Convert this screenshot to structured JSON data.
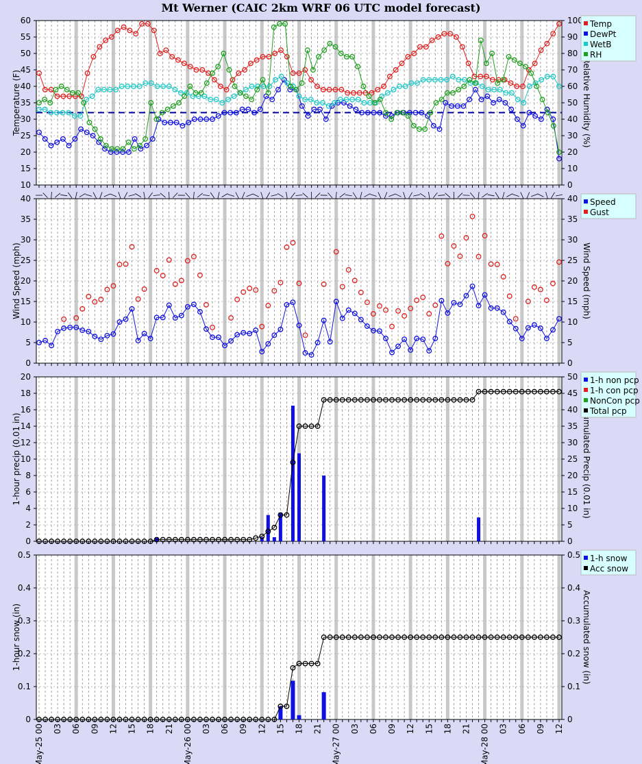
{
  "title": "Mt Werner (CAIC 2km WRF 06 UTC model forecast)",
  "hour_labels": [
    "00",
    "03",
    "06",
    "09",
    "12",
    "15",
    "18",
    "21"
  ],
  "day_labels": [
    {
      "hour": 0,
      "label": "May-25 00"
    },
    {
      "hour": 24,
      "label": "May-26 00"
    },
    {
      "hour": 48,
      "label": "May-27 00"
    },
    {
      "hour": 72,
      "label": "May-28 00"
    }
  ],
  "end_label": {
    "hour": 84,
    "label": "12"
  },
  "chart_data": [
    {
      "type": "line",
      "ylabel": "Temperature (F)",
      "ylabel_right": "Relative Humidity (%)",
      "ylim": [
        10,
        60
      ],
      "ylim_right": [
        0,
        100
      ],
      "freezing_line": 32,
      "legend": [
        "Temp",
        "DewPt",
        "WetB",
        "RH"
      ],
      "colors": {
        "Temp": "#e02020",
        "DewPt": "#1010e0",
        "WetB": "#20c8c8",
        "RH": "#20a020"
      },
      "series": [
        {
          "name": "Temp",
          "values": [
            44,
            39,
            39,
            37,
            37,
            37,
            37,
            37,
            44,
            49,
            52,
            54,
            55,
            57,
            58,
            57,
            56,
            59,
            59,
            57,
            50,
            51,
            49,
            48,
            47,
            46,
            45,
            45,
            44,
            42,
            40,
            39,
            42,
            44,
            45,
            47,
            48,
            49,
            49,
            50,
            51,
            49,
            44,
            44,
            45,
            42,
            40,
            39,
            39,
            39,
            39,
            38,
            38,
            38,
            38,
            38,
            39,
            40,
            43,
            45,
            47,
            49,
            50,
            52,
            52,
            54,
            55,
            56,
            56,
            55,
            52,
            47,
            43,
            43,
            43,
            42,
            42,
            42,
            41,
            40,
            40,
            45,
            47,
            51,
            53,
            56,
            59
          ]
        },
        {
          "name": "DewPt",
          "values": [
            26,
            24,
            22,
            23,
            24,
            22,
            24,
            27,
            26,
            25,
            23,
            21,
            20,
            20,
            20,
            20,
            24,
            21,
            22,
            24,
            30,
            29,
            29,
            29,
            28,
            29,
            30,
            30,
            30,
            30,
            31,
            32,
            32,
            32,
            33,
            33,
            32,
            33,
            37,
            36,
            39,
            42,
            39,
            39,
            34,
            31,
            33,
            33,
            30,
            34,
            35,
            35,
            34,
            33,
            32,
            32,
            32,
            32,
            31,
            31,
            32,
            32,
            32,
            32,
            32,
            31,
            28,
            27,
            35,
            34,
            34,
            34,
            36,
            39,
            36,
            37,
            35,
            36,
            35,
            33,
            30,
            28,
            32,
            31,
            30,
            33,
            30,
            18
          ]
        },
        {
          "name": "WetB",
          "values": [
            33,
            33,
            32,
            32,
            32,
            32,
            31,
            31,
            36,
            37,
            39,
            39,
            39,
            39,
            40,
            40,
            40,
            40,
            41,
            41,
            40,
            40,
            40,
            39,
            38,
            38,
            37,
            37,
            37,
            36,
            36,
            35,
            36,
            37,
            38,
            39,
            40,
            40,
            40,
            40,
            42,
            43,
            41,
            40,
            37,
            36,
            36,
            35,
            35,
            34,
            35,
            36,
            36,
            36,
            36,
            35,
            35,
            35,
            37,
            38,
            39,
            40,
            40,
            41,
            41,
            42,
            42,
            42,
            42,
            42,
            43,
            42,
            42,
            41,
            41,
            40,
            39,
            39,
            39,
            38,
            38,
            36,
            35,
            40,
            41,
            42,
            43,
            43,
            40
          ]
        },
        {
          "name": "RH",
          "values": [
            34,
            36,
            34,
            39,
            40,
            39,
            38,
            38,
            35,
            29,
            27,
            24,
            22,
            21,
            21,
            21,
            23,
            21,
            22,
            24,
            35,
            30,
            32,
            33,
            34,
            35,
            37,
            40,
            38,
            38,
            41,
            44,
            46,
            50,
            45,
            40,
            38,
            37,
            36,
            39,
            42,
            38,
            58,
            59,
            59,
            40,
            39,
            41,
            51,
            45,
            49,
            51,
            53,
            52,
            50,
            49,
            49,
            46,
            40,
            37,
            35,
            36,
            32,
            30,
            32,
            32,
            31,
            28,
            27,
            27,
            32,
            35,
            36,
            38,
            38,
            39,
            40,
            42,
            41,
            54,
            47,
            50,
            41,
            42,
            49,
            48,
            47,
            46,
            44,
            40,
            36,
            32,
            28,
            20
          ]
        }
      ],
      "rh_values": [
        50,
        52,
        50,
        58,
        60,
        58,
        56,
        56,
        50,
        38,
        34,
        28,
        24,
        22,
        22,
        22,
        26,
        22,
        24,
        28,
        50,
        40,
        44,
        46,
        48,
        50,
        54,
        60,
        56,
        56,
        62,
        68,
        72,
        80,
        70,
        60,
        56,
        54,
        52,
        58,
        64,
        56,
        96,
        98,
        98,
        60,
        58,
        62,
        82,
        70,
        78,
        82,
        86,
        84,
        80,
        78,
        78,
        72,
        60,
        54,
        50,
        52,
        44,
        40,
        44,
        44,
        42,
        36,
        34,
        34,
        44,
        50,
        52,
        56,
        56,
        58,
        60,
        64,
        62,
        88,
        74,
        80,
        62,
        64,
        78,
        76,
        74,
        72,
        68,
        60,
        52,
        44,
        36,
        20
      ]
    },
    {
      "type": "scatter",
      "ylabel": "Wind Speed (mph)",
      "ylabel_right": "Wind Speed (mph)",
      "ylim": [
        0,
        40
      ],
      "legend": [
        "Speed",
        "Gust"
      ],
      "colors": {
        "Speed": "#1010e0",
        "Gust": "#e02020"
      },
      "series": [
        {
          "name": "Speed",
          "values": [
            5,
            5.5,
            4.3,
            7.7,
            8.5,
            8.7,
            8.7,
            8,
            7.7,
            6.5,
            5.8,
            6.7,
            7.1,
            10,
            10.7,
            13.2,
            5.5,
            7.2,
            6,
            11.1,
            11.1,
            14.1,
            11,
            11.6,
            13.7,
            14.3,
            12.5,
            8.3,
            6.3,
            6.3,
            4.3,
            5.4,
            6.9,
            7.4,
            7.2,
            8,
            2.8,
            4.7,
            6.8,
            8.2,
            14.2,
            14.8,
            9.2,
            2.5,
            2,
            5,
            10.4,
            5.2,
            15,
            10.9,
            12.9,
            12.1,
            10.6,
            9,
            7.9,
            7.8,
            6,
            2.6,
            4.1,
            5.8,
            3.2,
            6,
            5.8,
            3,
            6,
            15.2,
            12.2,
            14.7,
            14.3,
            16.4,
            18.7,
            14,
            16.6,
            13.4,
            13.4,
            12.4,
            10.1,
            8.4,
            6,
            8.6,
            9.3,
            8.5,
            6,
            8.1,
            10.8
          ]
        },
        {
          "name": "Gust",
          "values": [
            null,
            null,
            null,
            null,
            10.7,
            null,
            11,
            13.2,
            16.2,
            14.9,
            15.5,
            17.9,
            18.8,
            24,
            24.1,
            28.3,
            15.6,
            18,
            null,
            22.5,
            21.3,
            25.1,
            19.2,
            20.1,
            24.9,
            25.9,
            21.4,
            14.2,
            8.7,
            null,
            null,
            11,
            15.5,
            17.3,
            18.2,
            17.8,
            8.9,
            14,
            17.6,
            19.6,
            28.2,
            29.3,
            19.4,
            6.8,
            null,
            null,
            19.2,
            null,
            27.1,
            18.6,
            22.7,
            20.1,
            17.2,
            14.8,
            12,
            13.9,
            12.9,
            8.9,
            12.7,
            11.5,
            13.3,
            15.3,
            16,
            12,
            14.1,
            30.9,
            24.2,
            28.5,
            26,
            30.5,
            35.7,
            25.9,
            31,
            24.1,
            24,
            21,
            16.3,
            10.8,
            null,
            15,
            18.5,
            17.9,
            15.3,
            19.4,
            24.6
          ]
        }
      ]
    },
    {
      "type": "bar",
      "ylabel": "1-hour precip (0.01 in)",
      "ylabel_right": "Accumulated Precip (0.01 in)",
      "ylim": [
        0,
        20
      ],
      "ylim_right": [
        0,
        50
      ],
      "legend": [
        "1-h non pcp",
        "1-h con pcp",
        "NonCon pcp",
        "Total pcp"
      ],
      "colors": {
        "1-h non pcp": "#1010e0",
        "1-h con pcp": "#e02020",
        "NonCon pcp": "#20a020",
        "Total pcp": "#000000"
      },
      "hourly": [
        {
          "hour": 19,
          "value": 0.5
        },
        {
          "hour": 36,
          "value": 0.5
        },
        {
          "hour": 37,
          "value": 3.2
        },
        {
          "hour": 38,
          "value": 0.5
        },
        {
          "hour": 39,
          "value": 3.5
        },
        {
          "hour": 41,
          "value": 16.5
        },
        {
          "hour": 42,
          "value": 10.7
        },
        {
          "hour": 46,
          "value": 8
        },
        {
          "hour": 71,
          "value": 2.9
        }
      ],
      "accum_steps": [
        {
          "hour": 0,
          "value": 0
        },
        {
          "hour": 19,
          "value": 0.5
        },
        {
          "hour": 35,
          "value": 1
        },
        {
          "hour": 36,
          "value": 1.5
        },
        {
          "hour": 37,
          "value": 3
        },
        {
          "hour": 38,
          "value": 4.2
        },
        {
          "hour": 39,
          "value": 8
        },
        {
          "hour": 40,
          "value": 8
        },
        {
          "hour": 41,
          "value": 24
        },
        {
          "hour": 42,
          "value": 35
        },
        {
          "hour": 45,
          "value": 35
        },
        {
          "hour": 46,
          "value": 43
        },
        {
          "hour": 70,
          "value": 43
        },
        {
          "hour": 71,
          "value": 45.5
        },
        {
          "hour": 84,
          "value": 45.5
        }
      ]
    },
    {
      "type": "bar",
      "ylabel": "1-hour snow (in)",
      "ylabel_right": "Accumulated snow (in)",
      "ylim": [
        0,
        0.5
      ],
      "legend": [
        "1-h snow",
        "Acc snow"
      ],
      "colors": {
        "1-h snow": "#1010e0",
        "Acc snow": "#000000"
      },
      "hourly": [
        {
          "hour": 39,
          "value": 0.04
        },
        {
          "hour": 41,
          "value": 0.118
        },
        {
          "hour": 42,
          "value": 0.013
        },
        {
          "hour": 46,
          "value": 0.083
        }
      ],
      "accum_steps": [
        {
          "hour": 0,
          "value": 0
        },
        {
          "hour": 38,
          "value": 0
        },
        {
          "hour": 39,
          "value": 0.04
        },
        {
          "hour": 40,
          "value": 0.04
        },
        {
          "hour": 41,
          "value": 0.157
        },
        {
          "hour": 42,
          "value": 0.17
        },
        {
          "hour": 45,
          "value": 0.17
        },
        {
          "hour": 46,
          "value": 0.25
        },
        {
          "hour": 84,
          "value": 0.25
        }
      ]
    }
  ]
}
